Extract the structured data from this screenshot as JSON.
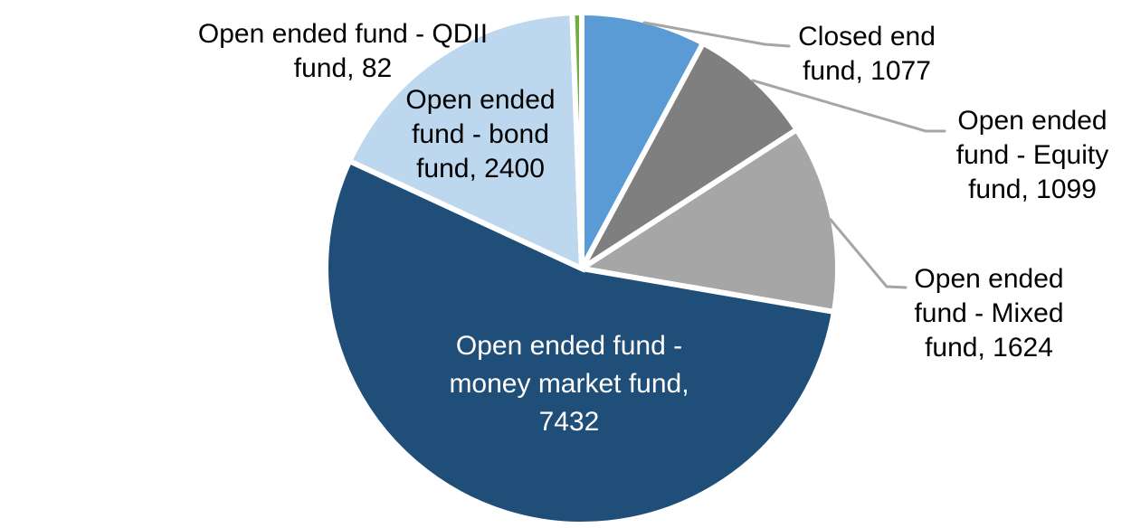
{
  "chart_data": {
    "type": "pie",
    "title": "",
    "legend_position": "none",
    "start_angle_deg": 0,
    "direction": "clockwise",
    "label_format": "name, value",
    "leader_line_color": "#A6A6A6",
    "slice_gap_color": "#FFFFFF",
    "background_color": "#FFFFFF",
    "categories": [
      "Closed end fund",
      "Open ended fund - Equity fund",
      "Open ended fund - Mixed fund",
      "Open ended fund - money market fund",
      "Open ended fund - bond fund",
      "Open ended fund - QDII fund"
    ],
    "values": [
      1077,
      1099,
      1624,
      7432,
      2400,
      82
    ],
    "slices": [
      {
        "id": "closed-end-fund",
        "name": "Closed end fund",
        "value": 1077,
        "color": "#5B9BD5",
        "label_lines": [
          "Closed end",
          "fund, 1077"
        ],
        "label_color": "#000000",
        "label_placement": "outside-right",
        "leader_line": true
      },
      {
        "id": "open-ended-equity-fund",
        "name": "Open ended fund - Equity fund",
        "value": 1099,
        "color": "#7F7F7F",
        "label_lines": [
          "Open ended",
          "fund - Equity",
          "fund, 1099"
        ],
        "label_color": "#000000",
        "label_placement": "outside-right",
        "leader_line": true
      },
      {
        "id": "open-ended-mixed-fund",
        "name": "Open ended fund - Mixed fund",
        "value": 1624,
        "color": "#A6A6A6",
        "label_lines": [
          "Open ended",
          "fund - Mixed",
          "fund, 1624"
        ],
        "label_color": "#000000",
        "label_placement": "outside-right",
        "leader_line": true
      },
      {
        "id": "open-ended-money-market-fund",
        "name": "Open ended fund - money market fund",
        "value": 7432,
        "color": "#1F4E79",
        "label_lines": [
          "Open ended fund -",
          "money market fund,",
          "7432"
        ],
        "label_color": "#FFFFFF",
        "label_placement": "inside",
        "leader_line": false
      },
      {
        "id": "open-ended-bond-fund",
        "name": "Open ended fund - bond fund",
        "value": 2400,
        "color": "#BDD7EE",
        "label_lines": [
          "Open ended",
          "fund - bond",
          "fund, 2400"
        ],
        "label_color": "#000000",
        "label_placement": "inside-top",
        "leader_line": false
      },
      {
        "id": "open-ended-qdii-fund",
        "name": "Open ended fund - QDII fund",
        "value": 82,
        "color": "#70AD47",
        "label_lines": [
          "Open ended fund - QDII",
          "fund, 82"
        ],
        "label_color": "#000000",
        "label_placement": "outside-left",
        "leader_line": false
      }
    ]
  }
}
